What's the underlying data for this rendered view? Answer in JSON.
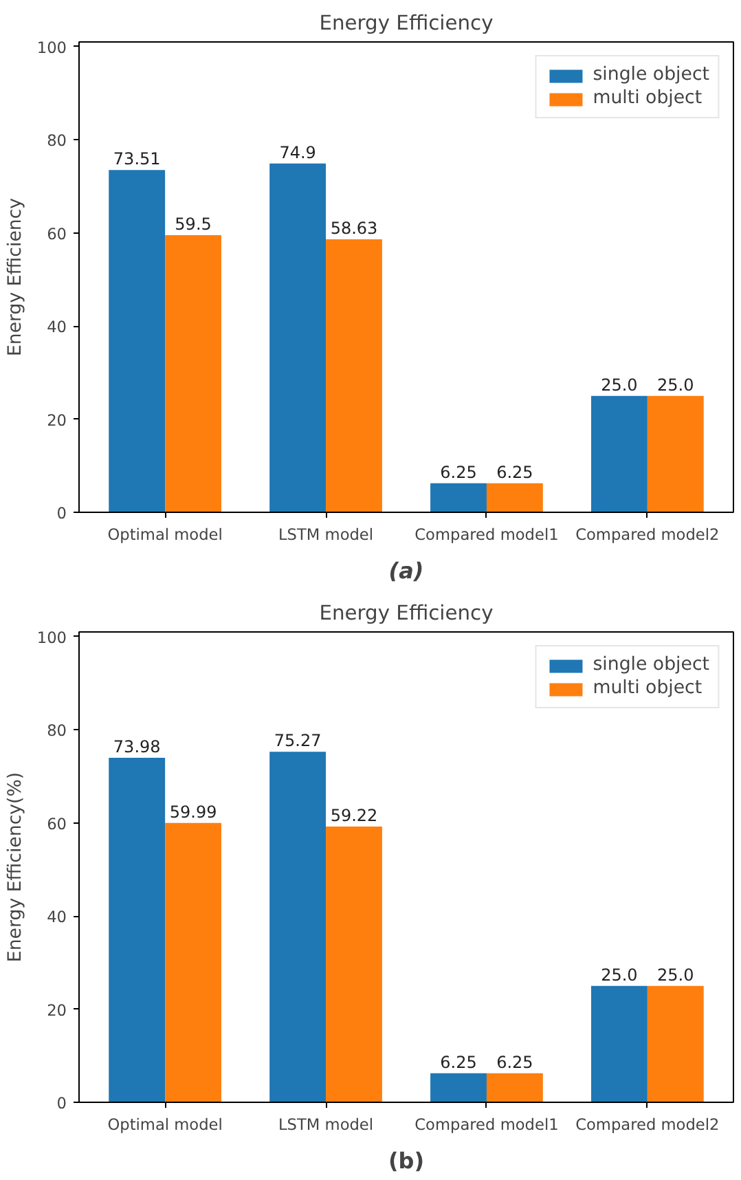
{
  "chart_data": [
    {
      "type": "bar",
      "title": "Energy Efficiency",
      "ylabel": "Energy Efficiency",
      "categories": [
        "Optimal model",
        "LSTM model",
        "Compared model1",
        "Compared model2"
      ],
      "series": [
        {
          "name": "single object",
          "color": "#1f77b4",
          "values": [
            73.51,
            74.9,
            6.25,
            25.0
          ],
          "value_labels": [
            "73.51",
            "74.9",
            "6.25",
            "25.0"
          ]
        },
        {
          "name": "multi object",
          "color": "#ff7f0e",
          "values": [
            59.5,
            58.63,
            6.25,
            25.0
          ],
          "value_labels": [
            "59.5",
            "58.63",
            "6.25",
            "25.0"
          ]
        }
      ],
      "ylim": [
        0,
        101
      ],
      "yticks": [
        0,
        20,
        40,
        60,
        80,
        100
      ],
      "legend": "top right",
      "grid": false,
      "annotations": [
        "(a)"
      ]
    },
    {
      "type": "bar",
      "title": "Energy Efficiency",
      "ylabel": "Energy Efficiency(%)",
      "categories": [
        "Optimal model",
        "LSTM model",
        "Compared model1",
        "Compared model2"
      ],
      "series": [
        {
          "name": "single object",
          "color": "#1f77b4",
          "values": [
            73.98,
            75.27,
            6.25,
            25.0
          ],
          "value_labels": [
            "73.98",
            "75.27",
            "6.25",
            "25.0"
          ]
        },
        {
          "name": "multi object",
          "color": "#ff7f0e",
          "values": [
            59.99,
            59.22,
            6.25,
            25.0
          ],
          "value_labels": [
            "59.99",
            "59.22",
            "6.25",
            "25.0"
          ]
        }
      ],
      "ylim": [
        0,
        101
      ],
      "yticks": [
        0,
        20,
        40,
        60,
        80,
        100
      ],
      "legend": "top right",
      "grid": false,
      "annotations": [
        "(b)"
      ]
    }
  ]
}
